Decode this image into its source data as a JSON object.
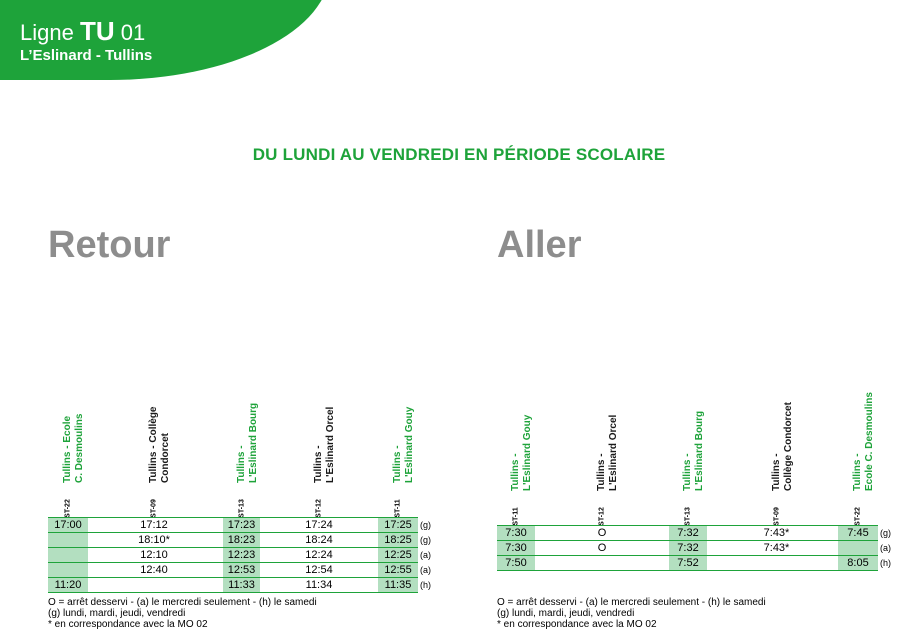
{
  "header": {
    "line_prefix": "Ligne",
    "line_code": "TU",
    "line_number": "01",
    "route": "L’Eslinard - Tullins"
  },
  "period": "DU LUNDI AU VENDREDI EN PÉRIODE SCOLAIRE",
  "retour": {
    "title": "Retour",
    "stops": [
      {
        "lines": [
          "Tullins - Ecole",
          "C. Desmoulins"
        ],
        "code": "ST-22",
        "color": "green"
      },
      {
        "lines": [
          "Tullins - Collège",
          "Condorcet"
        ],
        "code": "ST-09",
        "color": "black"
      },
      {
        "lines": [
          "Tullins -",
          "L'Eslinard Bourg"
        ],
        "code": "ST-13",
        "color": "green"
      },
      {
        "lines": [
          "Tullins -",
          "L'Eslinard Orcel"
        ],
        "code": "ST-12",
        "color": "black"
      },
      {
        "lines": [
          "Tullins -",
          "L'Eslinard Gouy"
        ],
        "code": "ST-11",
        "color": "green"
      }
    ],
    "rows": [
      {
        "times": [
          "17:00",
          "17:12",
          "17:23",
          "17:24",
          "17:25"
        ],
        "note": "(g)"
      },
      {
        "times": [
          "",
          "18:10*",
          "18:23",
          "18:24",
          "18:25"
        ],
        "note": "(g)"
      },
      {
        "times": [
          "",
          "12:10",
          "12:23",
          "12:24",
          "12:25"
        ],
        "note": "(a)"
      },
      {
        "times": [
          "",
          "12:40",
          "12:53",
          "12:54",
          "12:55"
        ],
        "note": "(a)"
      },
      {
        "times": [
          "11:20",
          "",
          "11:33",
          "11:34",
          "11:35"
        ],
        "note": "(h)"
      }
    ],
    "legend": [
      "O = arrêt desservi - (a) le mercredi seulement - (h) le samedi",
      "(g) lundi, mardi, jeudi, vendredi",
      "* en correspondance avec la MO 02"
    ]
  },
  "aller": {
    "title": "Aller",
    "stops": [
      {
        "lines": [
          "Tullins -",
          "L'Eslinard Gouy"
        ],
        "code": "ST-11",
        "color": "green"
      },
      {
        "lines": [
          "Tullins -",
          "L'Eslinard Orcel"
        ],
        "code": "ST-12",
        "color": "black"
      },
      {
        "lines": [
          "Tullins -",
          "L'Eslinard Bourg"
        ],
        "code": "ST-13",
        "color": "green"
      },
      {
        "lines": [
          "Tullins -",
          "Collège Condorcet"
        ],
        "code": "ST-09",
        "color": "black"
      },
      {
        "lines": [
          "Tullins -",
          "Ecole C. Desmoulins"
        ],
        "code": "ST-22",
        "color": "green"
      }
    ],
    "rows": [
      {
        "times": [
          "7:30",
          "O",
          "7:32",
          "7:43*",
          "7:45"
        ],
        "note": "(g)"
      },
      {
        "times": [
          "7:30",
          "O",
          "7:32",
          "7:43*",
          ""
        ],
        "note": "(a)"
      },
      {
        "times": [
          "7:50",
          "",
          "7:52",
          "",
          "8:05"
        ],
        "note": "(h)"
      }
    ],
    "legend": [
      "O = arrêt desservi - (a) le mercredi seulement - (h) le samedi",
      "(g) lundi, mardi, jeudi, vendredi",
      "* en correspondance avec la MO 02"
    ]
  },
  "colors": {
    "brand_green": "#1ea33a",
    "highlight": "#b3dfc0",
    "section_title": "#8d8d8d"
  }
}
